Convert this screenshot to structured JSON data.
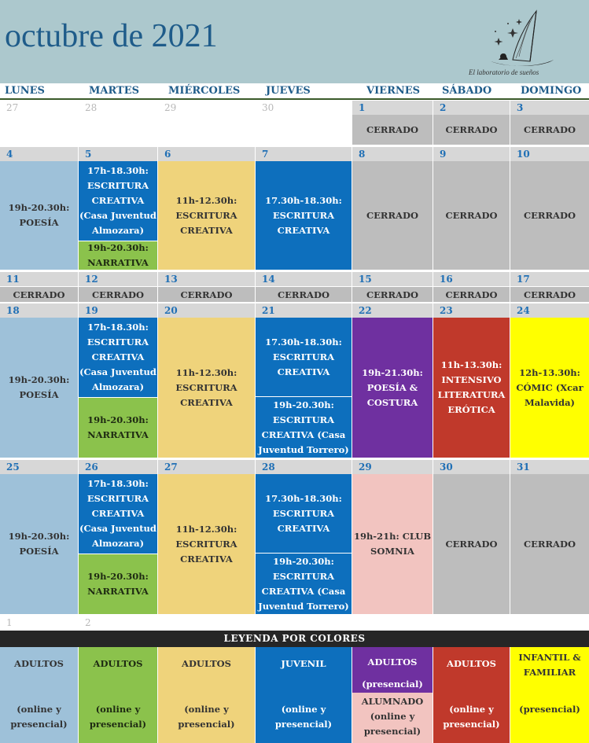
{
  "title": "octubre de 2021",
  "brand": "El laboratorio de sueños",
  "days": [
    "LUNES",
    "MARTES",
    "MIÉRCOLES",
    "JUEVES",
    "VIERNES",
    "SÁBADO",
    "DOMINGO"
  ],
  "closed": "CERRADO",
  "week0": {
    "prev": [
      "27",
      "28",
      "29",
      "30"
    ],
    "nums": [
      "1",
      "2",
      "3"
    ]
  },
  "week1": {
    "nums": [
      "4",
      "5",
      "6",
      "7",
      "8",
      "9",
      "10"
    ]
  },
  "week2": {
    "nums": [
      "11",
      "12",
      "13",
      "14",
      "15",
      "16",
      "17"
    ]
  },
  "week3": {
    "nums": [
      "18",
      "19",
      "20",
      "21",
      "22",
      "23",
      "24"
    ]
  },
  "week4": {
    "nums": [
      "25",
      "26",
      "27",
      "28",
      "29",
      "30",
      "31"
    ]
  },
  "next": [
    "1",
    "2"
  ],
  "ev": {
    "poesia": [
      "19h-20.30h:",
      "POESÍA"
    ],
    "esc_tue": [
      "17h-18.30h:",
      "ESCRITURA",
      "CREATIVA",
      "(Casa Juventud",
      "Almozara)"
    ],
    "narr": [
      "19h-20.30h:",
      "NARRATIVA"
    ],
    "esc_wed": [
      "11h-12.30h:",
      "ESCRITURA",
      "CREATIVA"
    ],
    "esc_thu": [
      "17.30h-18.30h:",
      "ESCRITURA",
      "CREATIVA"
    ],
    "esc_thu_b": [
      "19h-20.30h:",
      "ESCRITURA",
      "CREATIVA (Casa",
      "Juventud Torrero)"
    ],
    "costura": [
      "19h-21.30h:",
      "POESÍA &",
      "COSTURA"
    ],
    "erotica": [
      "11h-13.30h:",
      "INTENSIVO",
      "LITERATURA",
      "ERÓTICA"
    ],
    "comic": [
      "12h-13.30h:",
      "CÓMIC (Xcar",
      "Malavida)"
    ],
    "club": [
      "19h-21h: CLUB",
      "SOMNIA"
    ]
  },
  "legend": {
    "title": "LEYENDA POR COLORES",
    "items": [
      {
        "top": "ADULTOS",
        "bottom": [
          "(online y",
          "presencial)"
        ],
        "color": "#9ec1d9"
      },
      {
        "top": "ADULTOS",
        "bottom": [
          "(online y",
          "presencial)"
        ],
        "color": "#8bc24c"
      },
      {
        "top": "ADULTOS",
        "bottom": [
          "(online y",
          "presencial)"
        ],
        "color": "#efd37b"
      },
      {
        "top": "JUVENIL",
        "bottom": [
          "(online y",
          "presencial)"
        ],
        "color": "#0d6fbd"
      },
      {
        "top": "ADULTOS",
        "mid": "(presencial)",
        "bottom": [
          "ALUMNADO",
          "(online y",
          "presencial)"
        ],
        "color": "#6f30a0",
        "color2": "#f2c4c0"
      },
      {
        "top": "ADULTOS",
        "bottom": [
          "(online y",
          "presencial)"
        ],
        "color": "#c0392b"
      },
      {
        "top": [
          "INFANTIL &",
          "FAMILIAR"
        ],
        "bottom": [
          "(presencial)"
        ],
        "color": "#ffff00"
      }
    ]
  }
}
